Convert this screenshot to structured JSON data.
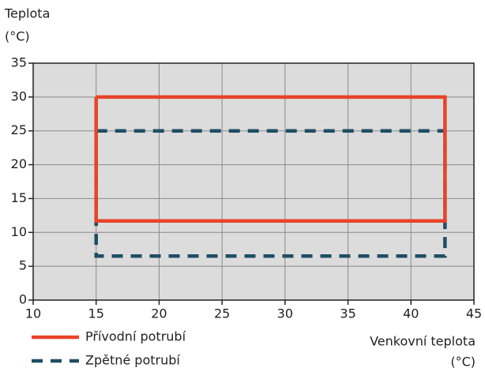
{
  "chart_data": {
    "type": "line",
    "ylabel": [
      "Teplota",
      "(°C)"
    ],
    "xlabel": [
      "Venkovní teplota",
      "(°C)"
    ],
    "xlim": [
      10,
      45
    ],
    "xticks": [
      10,
      15,
      20,
      25,
      30,
      35,
      40,
      45
    ],
    "ylim": [
      0,
      35
    ],
    "yticks": [
      0,
      5,
      10,
      15,
      20,
      25,
      30,
      35
    ],
    "grid": true,
    "legend": "bottom-left",
    "series": [
      {
        "name": "Přívodní potrubí",
        "color": "#e8432a",
        "dash": false,
        "x": [
          15,
          42.7,
          42.7,
          15,
          15
        ],
        "values": [
          30,
          30,
          11.7,
          11.7,
          30
        ]
      },
      {
        "name": "Zpětné potrubí",
        "color": "#1f4e63",
        "dash": true,
        "x": [
          15,
          42.7,
          42.7,
          15,
          15
        ],
        "values": [
          25,
          25,
          6.5,
          6.5,
          25
        ]
      }
    ]
  }
}
